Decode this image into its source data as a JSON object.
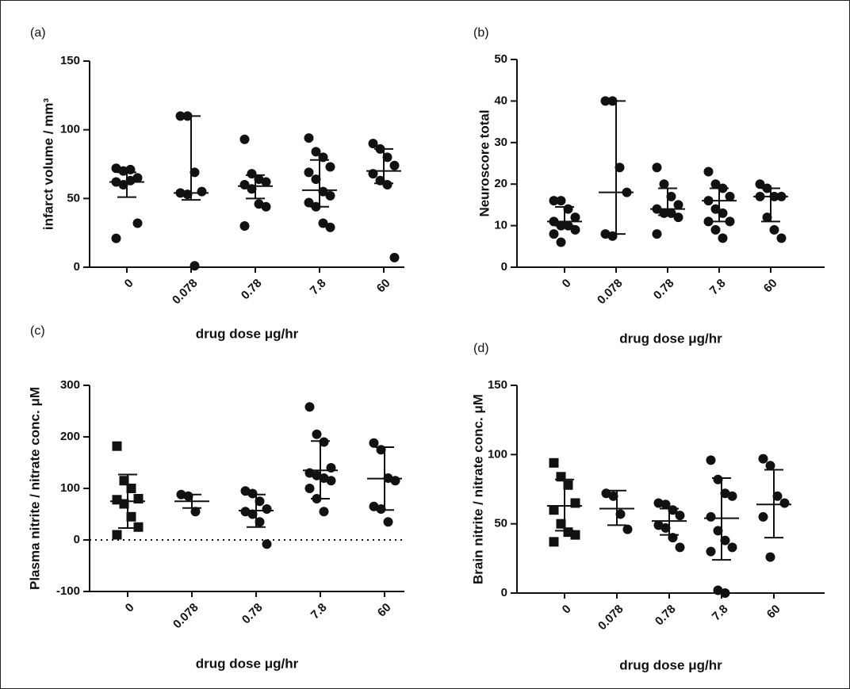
{
  "chart_data": [
    {
      "type": "dot",
      "panel": "(a)",
      "ylabel": "infarct volume / mm³",
      "xlabel": "drug dose  μg/hr",
      "categories": [
        "0",
        "0.078",
        "0.78",
        "7.8",
        "60"
      ],
      "markers": [
        "circle",
        "circle",
        "circle",
        "circle",
        "circle"
      ],
      "color": "#111111",
      "ylim": [
        0,
        150
      ],
      "yticks": [
        0,
        50,
        100,
        150
      ],
      "zero_line": false,
      "groups": [
        {
          "points": [
            72,
            70,
            71,
            65,
            62,
            60,
            63,
            32,
            21
          ],
          "center": 62,
          "low": 51,
          "high": 69
        },
        {
          "points": [
            110,
            110,
            69,
            55,
            54,
            53,
            1
          ],
          "center": 54,
          "low": 49,
          "high": 110
        },
        {
          "points": [
            93,
            68,
            64,
            62,
            60,
            57,
            46,
            44,
            30
          ],
          "center": 59,
          "low": 50,
          "high": 67
        },
        {
          "points": [
            94,
            84,
            80,
            73,
            69,
            64,
            55,
            52,
            47,
            44,
            32,
            29
          ],
          "center": 56,
          "low": 44,
          "high": 78
        },
        {
          "points": [
            90,
            86,
            80,
            74,
            68,
            63,
            60,
            7
          ],
          "center": 70,
          "low": 61,
          "high": 86
        }
      ]
    },
    {
      "type": "dot",
      "panel": "(b)",
      "ylabel": "Neuroscore total",
      "xlabel": "drug dose  μg/hr",
      "categories": [
        "0",
        "0.078",
        "0.78",
        "7.8",
        "60"
      ],
      "markers": [
        "circle",
        "circle",
        "circle",
        "circle",
        "circle"
      ],
      "color": "#111111",
      "ylim": [
        0,
        50
      ],
      "yticks": [
        0,
        10,
        20,
        30,
        40,
        50
      ],
      "zero_line": false,
      "groups": [
        {
          "points": [
            16,
            16,
            14,
            12,
            11,
            10,
            10,
            9,
            8,
            6
          ],
          "center": 11,
          "low": 10,
          "high": 14.5
        },
        {
          "points": [
            40,
            40,
            24,
            18,
            8,
            7.5
          ],
          "center": 18,
          "low": 8,
          "high": 40
        },
        {
          "points": [
            24,
            20,
            17,
            15,
            14,
            13,
            13,
            12,
            8
          ],
          "center": 14,
          "low": 12.5,
          "high": 19
        },
        {
          "points": [
            23,
            20,
            19,
            17,
            16,
            14,
            13,
            11,
            11,
            9,
            7
          ],
          "center": 16,
          "low": 11,
          "high": 19
        },
        {
          "points": [
            20,
            19,
            17,
            17,
            17,
            12,
            9,
            7
          ],
          "center": 17,
          "low": 11,
          "high": 19
        }
      ]
    },
    {
      "type": "dot",
      "panel": "(c)",
      "ylabel": "Plasma nitrite / nitrate conc. μM",
      "xlabel": "drug dose  μg/hr",
      "categories": [
        "0",
        "0.078",
        "0.78",
        "7.8",
        "60"
      ],
      "markers": [
        "square",
        "circle",
        "circle",
        "circle",
        "circle"
      ],
      "color": "#111111",
      "ylim": [
        -100,
        300
      ],
      "yticks": [
        -100,
        0,
        100,
        200,
        300
      ],
      "zero_line": true,
      "groups": [
        {
          "points": [
            182,
            115,
            100,
            80,
            78,
            70,
            45,
            25,
            10
          ],
          "center": 75,
          "low": 23,
          "high": 127
        },
        {
          "points": [
            88,
            85,
            55
          ],
          "center": 75,
          "low": 62,
          "high": 88
        },
        {
          "points": [
            95,
            90,
            75,
            60,
            55,
            50,
            35,
            -8
          ],
          "center": 57,
          "low": 25,
          "high": 88
        },
        {
          "points": [
            258,
            205,
            190,
            140,
            130,
            125,
            120,
            115,
            100,
            80,
            55
          ],
          "center": 135,
          "low": 80,
          "high": 192
        },
        {
          "points": [
            188,
            175,
            120,
            115,
            65,
            60,
            35
          ],
          "center": 119,
          "low": 58,
          "high": 180
        }
      ]
    },
    {
      "type": "dot",
      "panel": "(d)",
      "ylabel": "Brain nitrite / nitrate conc. μM",
      "xlabel": "drug dose  μg/hr",
      "categories": [
        "0",
        "0.078",
        "0.78",
        "7.8",
        "60"
      ],
      "markers": [
        "square",
        "circle",
        "circle",
        "circle",
        "circle"
      ],
      "color": "#111111",
      "ylim": [
        0,
        150
      ],
      "yticks": [
        0,
        50,
        100,
        150
      ],
      "zero_line": false,
      "groups": [
        {
          "points": [
            94,
            84,
            78,
            65,
            60,
            50,
            44,
            42,
            37
          ],
          "center": 63,
          "low": 45,
          "high": 82
        },
        {
          "points": [
            72,
            70,
            57,
            46
          ],
          "center": 61,
          "low": 49,
          "high": 74
        },
        {
          "points": [
            65,
            64,
            60,
            56,
            49,
            47,
            40,
            33
          ],
          "center": 52,
          "low": 42,
          "high": 61
        },
        {
          "points": [
            96,
            82,
            72,
            70,
            55,
            45,
            38,
            33,
            30,
            2,
            0
          ],
          "center": 54,
          "low": 24,
          "high": 83
        },
        {
          "points": [
            97,
            92,
            70,
            65,
            55,
            26
          ],
          "center": 64,
          "low": 40,
          "high": 89
        }
      ]
    }
  ]
}
